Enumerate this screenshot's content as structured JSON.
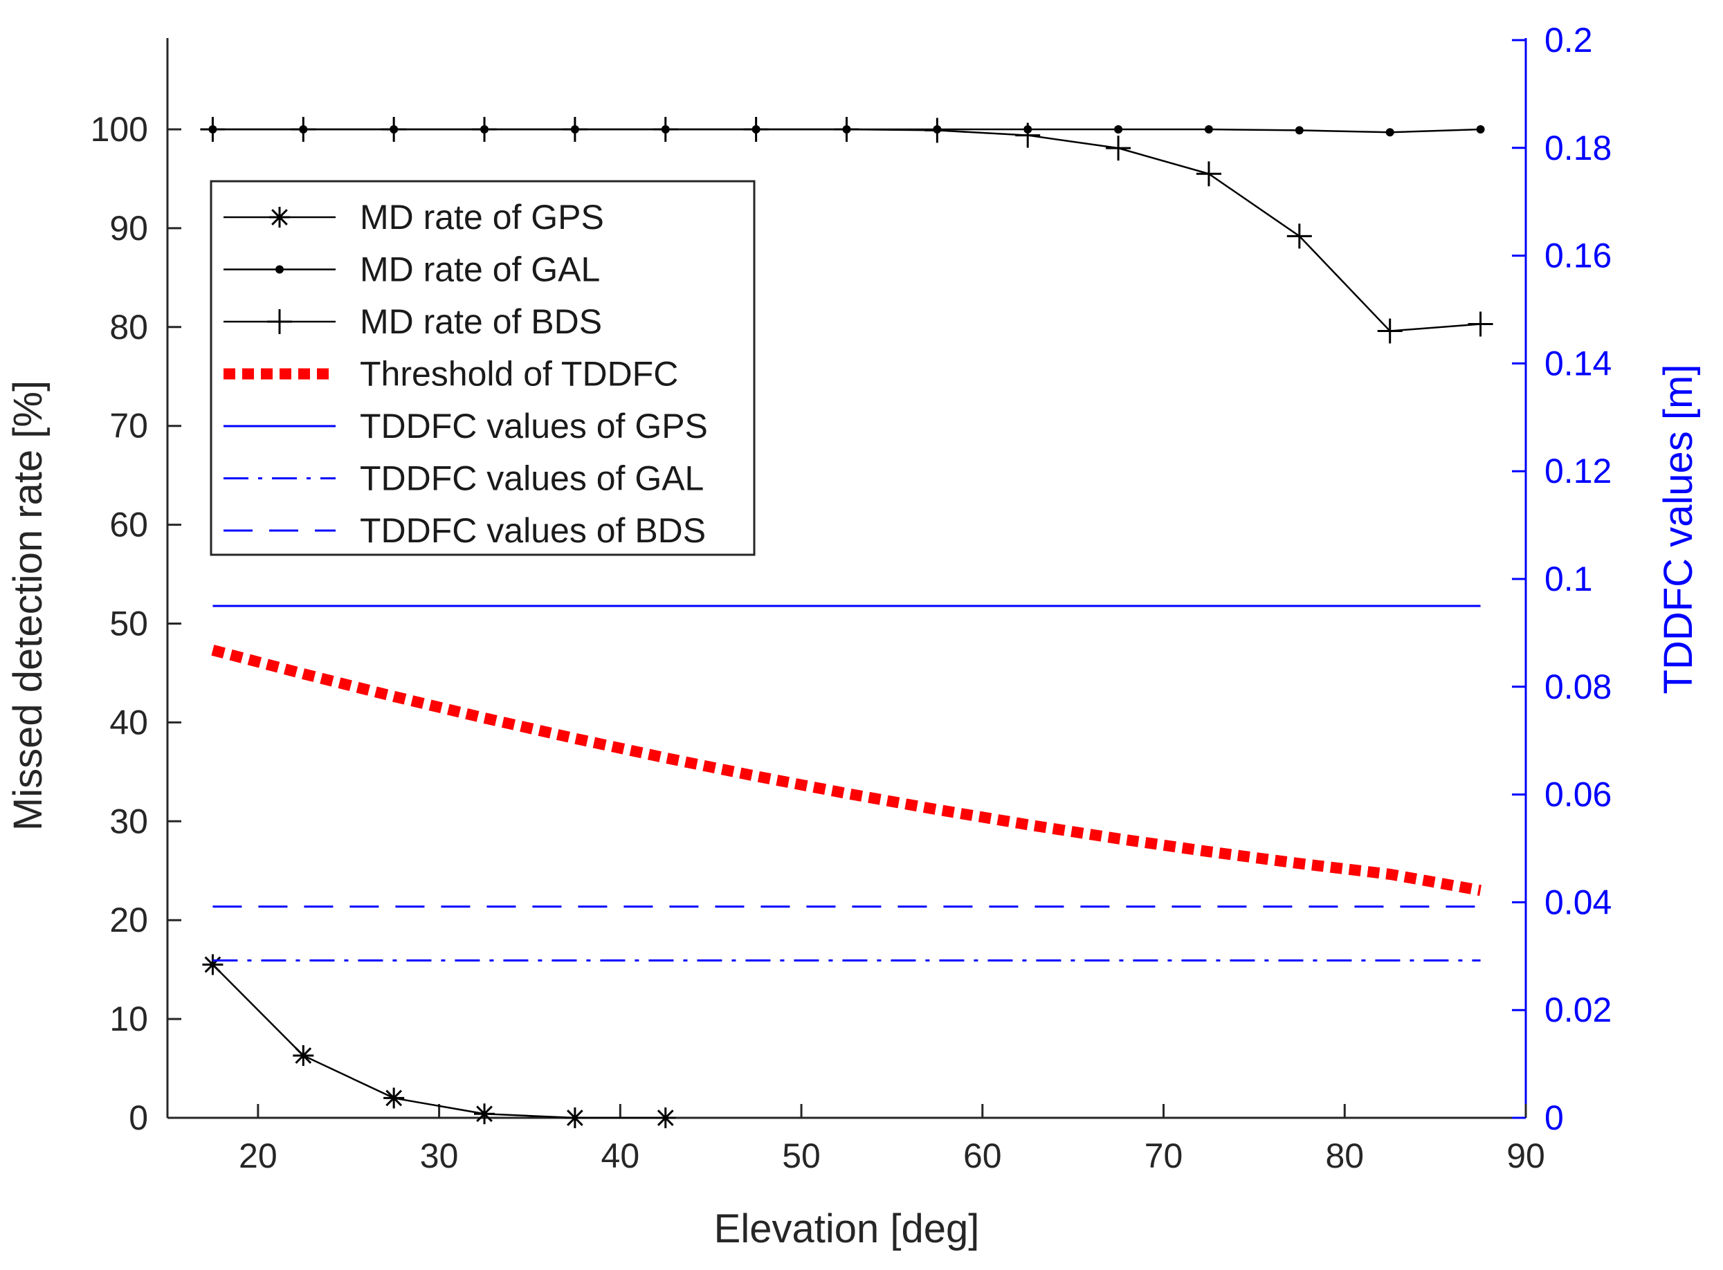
{
  "chart_data": {
    "type": "line",
    "xlabel": "Elevation [deg]",
    "ylabel_left": "Missed detection rate [%]",
    "ylabel_right": "TDDFC values [m]",
    "xlim": [
      15,
      90
    ],
    "ylim_left": [
      0,
      100
    ],
    "ylim_right": [
      0,
      0.2
    ],
    "x_ticks": [
      20,
      30,
      40,
      50,
      60,
      70,
      80,
      90
    ],
    "y_left_ticks": [
      0,
      10,
      20,
      30,
      40,
      50,
      60,
      70,
      80,
      90,
      100
    ],
    "y_right_ticks": [
      "0",
      "0.02",
      "0.04",
      "0.06",
      "0.08",
      "0.1",
      "0.12",
      "0.14",
      "0.16",
      "0.18",
      "0.2"
    ],
    "legend_position": "upper-left",
    "x": [
      17.5,
      22.5,
      27.5,
      32.5,
      37.5,
      42.5,
      47.5,
      52.5,
      57.5,
      62.5,
      67.5,
      72.5,
      77.5,
      82.5,
      87.5
    ],
    "series": [
      {
        "name": "MD rate of GPS",
        "axis": "left",
        "marker": "star",
        "color": "#000000",
        "x": [
          17.5,
          22.5,
          27.5,
          32.5,
          37.5,
          42.5
        ],
        "values": [
          15.5,
          6.3,
          2.0,
          0.4,
          0.0,
          0.0
        ]
      },
      {
        "name": "MD rate of GAL",
        "axis": "left",
        "marker": "dot",
        "color": "#000000",
        "values": [
          100,
          100,
          100,
          100,
          100,
          100,
          100,
          100,
          100,
          100,
          100,
          100,
          99.9,
          99.7,
          100
        ]
      },
      {
        "name": "MD rate of BDS",
        "axis": "left",
        "marker": "plus",
        "color": "#000000",
        "values": [
          100,
          100,
          100,
          100,
          100,
          100,
          100,
          100,
          99.9,
          99.4,
          98.1,
          95.5,
          89.2,
          79.6,
          80.3
        ]
      },
      {
        "name": "Threshold of TDDFC",
        "axis": "right",
        "style": "dotted-thick",
        "color": "#ff0000",
        "values": [
          0.0868,
          0.0824,
          0.0782,
          0.0742,
          0.0704,
          0.0668,
          0.0634,
          0.0602,
          0.0572,
          0.0544,
          0.0518,
          0.0494,
          0.0472,
          0.0452,
          0.0422
        ]
      },
      {
        "name": "TDDFC values of GPS",
        "axis": "right",
        "style": "solid",
        "color": "#0000ff",
        "values": [
          0.095,
          0.095,
          0.095,
          0.095,
          0.095,
          0.095,
          0.095,
          0.095,
          0.095,
          0.095,
          0.095,
          0.095,
          0.095,
          0.095,
          0.095
        ]
      },
      {
        "name": "TDDFC values of GAL",
        "axis": "right",
        "style": "dash-dot",
        "color": "#0000ff",
        "values": [
          0.0292,
          0.0292,
          0.0292,
          0.0292,
          0.0292,
          0.0292,
          0.0292,
          0.0292,
          0.0292,
          0.0292,
          0.0292,
          0.0292,
          0.0292,
          0.0292,
          0.0292
        ]
      },
      {
        "name": "TDDFC values of BDS",
        "axis": "right",
        "style": "dashed",
        "color": "#0000ff",
        "values": [
          0.0392,
          0.0392,
          0.0392,
          0.0392,
          0.0392,
          0.0392,
          0.0392,
          0.0392,
          0.0392,
          0.0392,
          0.0392,
          0.0392,
          0.0392,
          0.0392,
          0.0392
        ]
      }
    ]
  }
}
